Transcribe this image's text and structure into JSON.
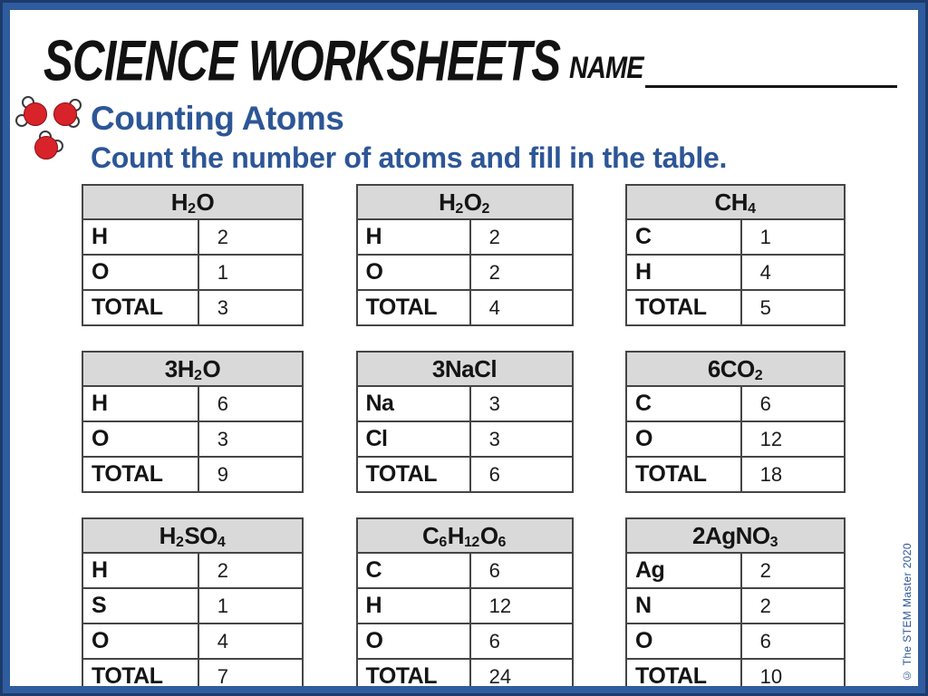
{
  "header": {
    "brand": "SCIENCE WORKSHEETS",
    "name_label": "NAME"
  },
  "intro": {
    "title": "Counting Atoms",
    "instruction": "Count the number of atoms and fill in the table."
  },
  "labels": {
    "total": "TOTAL"
  },
  "footer": {
    "copyright": "© The STEM Master 2020"
  },
  "colors": {
    "accent_blue": "#2d5697",
    "frame_blue": "#2f5c9e",
    "frame_dark": "#1d3a6b",
    "table_header_gray": "#d9d9d9",
    "molecule_red": "#d8232a"
  },
  "tables": [
    {
      "id": "h2o",
      "formula": [
        {
          "t": "H"
        },
        {
          "t": "2",
          "sub": true
        },
        {
          "t": "O"
        }
      ],
      "rows": [
        {
          "element": "H",
          "count": "2"
        },
        {
          "element": "O",
          "count": "1"
        }
      ],
      "total": "3"
    },
    {
      "id": "h2o2",
      "formula": [
        {
          "t": "H"
        },
        {
          "t": "2",
          "sub": true
        },
        {
          "t": "O"
        },
        {
          "t": "2",
          "sub": true
        }
      ],
      "rows": [
        {
          "element": "H",
          "count": "2"
        },
        {
          "element": "O",
          "count": "2"
        }
      ],
      "total": "4"
    },
    {
      "id": "ch4",
      "formula": [
        {
          "t": "CH"
        },
        {
          "t": "4",
          "sub": true
        }
      ],
      "rows": [
        {
          "element": "C",
          "count": "1"
        },
        {
          "element": "H",
          "count": "4"
        }
      ],
      "total": "5"
    },
    {
      "id": "3h2o",
      "formula": [
        {
          "t": "3H"
        },
        {
          "t": "2",
          "sub": true
        },
        {
          "t": "O"
        }
      ],
      "rows": [
        {
          "element": "H",
          "count": "6"
        },
        {
          "element": "O",
          "count": "3"
        }
      ],
      "total": "9"
    },
    {
      "id": "3nacl",
      "formula": [
        {
          "t": "3NaCl"
        }
      ],
      "rows": [
        {
          "element": "Na",
          "count": "3"
        },
        {
          "element": "Cl",
          "count": "3"
        }
      ],
      "total": "6"
    },
    {
      "id": "6co2",
      "formula": [
        {
          "t": "6CO"
        },
        {
          "t": "2",
          "sub": true
        }
      ],
      "rows": [
        {
          "element": "C",
          "count": "6"
        },
        {
          "element": "O",
          "count": "12"
        }
      ],
      "total": "18"
    },
    {
      "id": "h2so4",
      "formula": [
        {
          "t": "H"
        },
        {
          "t": "2",
          "sub": true
        },
        {
          "t": "SO"
        },
        {
          "t": "4",
          "sub": true
        }
      ],
      "rows": [
        {
          "element": "H",
          "count": "2"
        },
        {
          "element": "S",
          "count": "1"
        },
        {
          "element": "O",
          "count": "4"
        }
      ],
      "total": "7"
    },
    {
      "id": "c6h12o6",
      "formula": [
        {
          "t": "C"
        },
        {
          "t": "6",
          "sub": true
        },
        {
          "t": "H"
        },
        {
          "t": "12",
          "sub": true
        },
        {
          "t": "O"
        },
        {
          "t": "6",
          "sub": true
        }
      ],
      "rows": [
        {
          "element": "C",
          "count": "6"
        },
        {
          "element": "H",
          "count": "12"
        },
        {
          "element": "O",
          "count": "6"
        }
      ],
      "total": "24"
    },
    {
      "id": "2agno3",
      "formula": [
        {
          "t": "2AgNO"
        },
        {
          "t": "3",
          "sub": true
        }
      ],
      "rows": [
        {
          "element": "Ag",
          "count": "2"
        },
        {
          "element": "N",
          "count": "2"
        },
        {
          "element": "O",
          "count": "6"
        }
      ],
      "total": "10"
    }
  ]
}
